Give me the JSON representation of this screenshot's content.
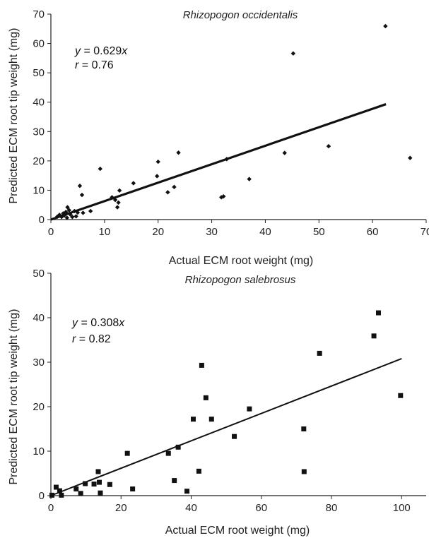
{
  "chart_data": [
    {
      "type": "scatter",
      "title": "Rhizopogon occidentalis",
      "xlabel": "Actual ECM root weight (mg)",
      "ylabel": "Predicted ECM root tip weight (mg)",
      "xlim": [
        0,
        70
      ],
      "ylim": [
        0,
        70
      ],
      "xticks": [
        0,
        10,
        20,
        30,
        40,
        50,
        60,
        70
      ],
      "yticks": [
        0,
        10,
        20,
        30,
        40,
        50,
        60,
        70
      ],
      "grid": false,
      "marker": "diamond",
      "annotation": {
        "eq_var": "y",
        "eq_rest": " = 0.629",
        "eq_x": "x",
        "r_var": "r",
        "r_rest": " = 0.76"
      },
      "fit_line": {
        "slope": 0.629,
        "x_range": [
          0,
          62.5
        ]
      },
      "series": [
        {
          "points": [
            [
              1.2,
              1.0
            ],
            [
              1.6,
              1.6
            ],
            [
              2.0,
              0.9
            ],
            [
              2.3,
              2.1
            ],
            [
              2.5,
              1.4
            ],
            [
              2.8,
              2.6
            ],
            [
              3.0,
              0.6
            ],
            [
              3.1,
              4.2
            ],
            [
              3.4,
              3.2
            ],
            [
              3.6,
              1.8
            ],
            [
              4.0,
              0.9
            ],
            [
              4.4,
              2.9
            ],
            [
              4.7,
              1.1
            ],
            [
              5.0,
              2.4
            ],
            [
              5.4,
              11.5
            ],
            [
              5.8,
              8.4
            ],
            [
              6.0,
              2.3
            ],
            [
              7.4,
              2.9
            ],
            [
              9.2,
              17.3
            ],
            [
              11.4,
              7.6
            ],
            [
              12.0,
              6.7
            ],
            [
              12.4,
              4.2
            ],
            [
              12.6,
              5.8
            ],
            [
              12.8,
              9.9
            ],
            [
              15.4,
              12.4
            ],
            [
              19.8,
              14.8
            ],
            [
              20.0,
              19.7
            ],
            [
              21.8,
              9.3
            ],
            [
              23.0,
              11.1
            ],
            [
              23.8,
              22.8
            ],
            [
              31.8,
              7.6
            ],
            [
              32.2,
              7.9
            ],
            [
              32.8,
              20.6
            ],
            [
              37.0,
              13.8
            ],
            [
              43.6,
              22.7
            ],
            [
              45.2,
              56.6
            ],
            [
              51.8,
              25.0
            ],
            [
              62.4,
              65.9
            ],
            [
              67.0,
              21.0
            ]
          ]
        }
      ]
    },
    {
      "type": "scatter",
      "title": "Rhizopogon salebrosus",
      "xlabel": "Actual ECM root weight (mg)",
      "ylabel": "Predicted ECM root tip weight (mg)",
      "xlim": [
        0,
        107
      ],
      "ylim": [
        0,
        50
      ],
      "xticks": [
        0,
        20,
        40,
        60,
        80,
        100
      ],
      "yticks": [
        0,
        10,
        20,
        30,
        40,
        50
      ],
      "grid": false,
      "marker": "square",
      "annotation": {
        "eq_var": "y",
        "eq_rest": " = 0.308",
        "eq_x": "x",
        "r_var": "r",
        "r_rest": " = 0.82"
      },
      "fit_line": {
        "slope": 0.308,
        "x_range": [
          0,
          100
        ]
      },
      "series": [
        {
          "points": [
            [
              0.3,
              0.1
            ],
            [
              1.5,
              1.9
            ],
            [
              2.5,
              1.1
            ],
            [
              3.0,
              0.1
            ],
            [
              7.2,
              1.5
            ],
            [
              8.5,
              0.5
            ],
            [
              9.8,
              2.7
            ],
            [
              12.3,
              2.6
            ],
            [
              13.5,
              5.4
            ],
            [
              13.8,
              3.0
            ],
            [
              14.1,
              0.6
            ],
            [
              16.8,
              2.5
            ],
            [
              21.8,
              9.5
            ],
            [
              23.3,
              1.5
            ],
            [
              33.5,
              9.5
            ],
            [
              35.2,
              3.4
            ],
            [
              36.3,
              10.9
            ],
            [
              38.8,
              1.0
            ],
            [
              40.6,
              17.2
            ],
            [
              42.2,
              5.5
            ],
            [
              43.0,
              29.3
            ],
            [
              44.2,
              22.0
            ],
            [
              45.8,
              17.2
            ],
            [
              52.3,
              13.3
            ],
            [
              56.6,
              19.5
            ],
            [
              72.1,
              15.0
            ],
            [
              72.2,
              5.4
            ],
            [
              76.6,
              32.0
            ],
            [
              92.1,
              35.9
            ],
            [
              93.4,
              41.1
            ],
            [
              99.7,
              22.5
            ]
          ]
        }
      ]
    }
  ]
}
